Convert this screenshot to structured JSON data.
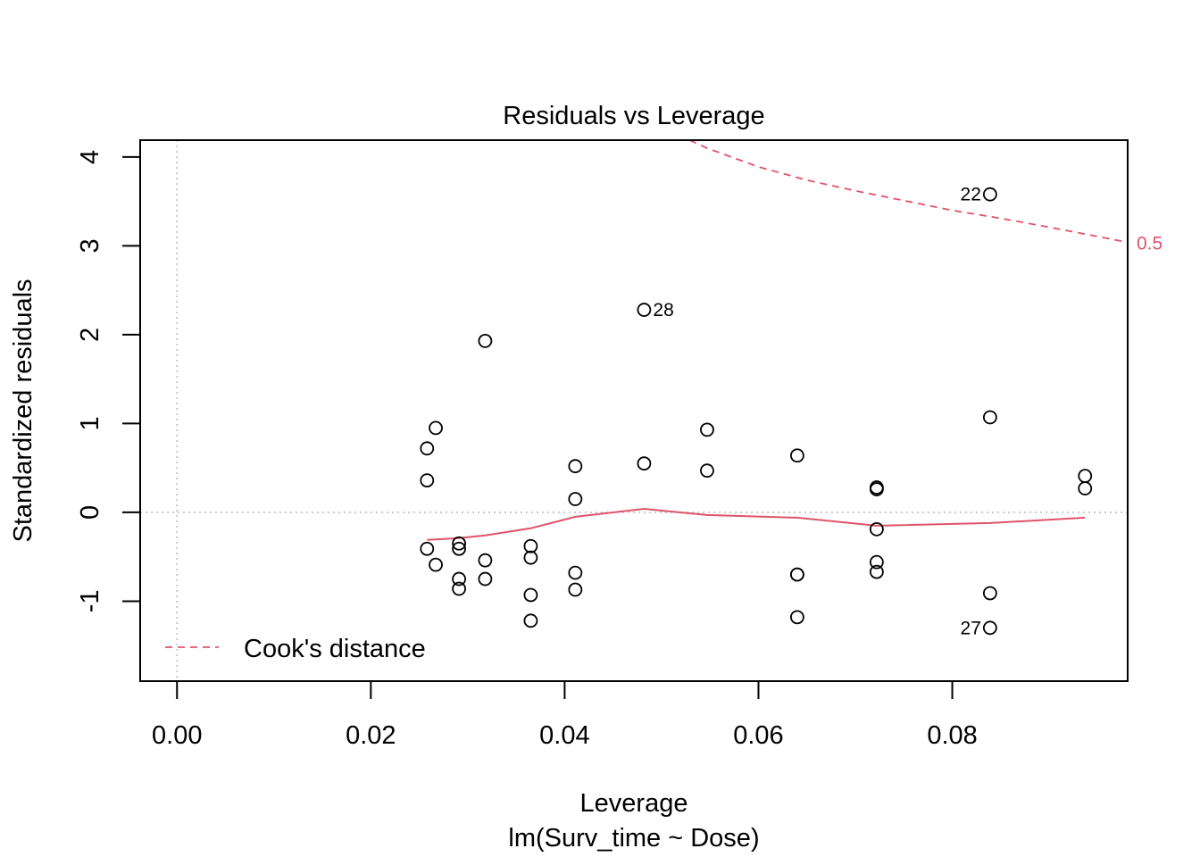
{
  "chart_data": {
    "type": "scatter",
    "title": "Residuals vs Leverage",
    "xlabel": "Leverage",
    "subtitle": "lm(Surv_time ~ Dose)",
    "ylabel": "Standardized residuals",
    "xlim": [
      -0.0038,
      0.0981
    ],
    "ylim": [
      -1.9,
      4.19
    ],
    "x_ticks": [
      0.0,
      0.02,
      0.04,
      0.06,
      0.08
    ],
    "x_tick_labels": [
      "0.00",
      "0.02",
      "0.04",
      "0.06",
      "0.08"
    ],
    "y_ticks": [
      -1,
      0,
      1,
      2,
      3,
      4
    ],
    "y_tick_labels": [
      "-1",
      "0",
      "1",
      "2",
      "3",
      "4"
    ],
    "reference_lines": {
      "x": 0,
      "y": 0,
      "style": "dotted",
      "color": "#bebebe"
    },
    "points": [
      {
        "x": 0.0258,
        "y": 0.72
      },
      {
        "x": 0.0258,
        "y": 0.36
      },
      {
        "x": 0.0258,
        "y": -0.41
      },
      {
        "x": 0.0267,
        "y": 0.95
      },
      {
        "x": 0.0267,
        "y": -0.59
      },
      {
        "x": 0.0291,
        "y": -0.35
      },
      {
        "x": 0.0291,
        "y": -0.41
      },
      {
        "x": 0.0291,
        "y": -0.75
      },
      {
        "x": 0.0291,
        "y": -0.86
      },
      {
        "x": 0.0318,
        "y": 1.93
      },
      {
        "x": 0.0318,
        "y": -0.54
      },
      {
        "x": 0.0318,
        "y": -0.75
      },
      {
        "x": 0.0365,
        "y": -0.38
      },
      {
        "x": 0.0365,
        "y": -0.51
      },
      {
        "x": 0.0365,
        "y": -0.93
      },
      {
        "x": 0.0365,
        "y": -1.22
      },
      {
        "x": 0.0411,
        "y": 0.52
      },
      {
        "x": 0.0411,
        "y": 0.15
      },
      {
        "x": 0.0411,
        "y": -0.68
      },
      {
        "x": 0.0411,
        "y": -0.87
      },
      {
        "x": 0.0482,
        "y": 2.28,
        "label": "28"
      },
      {
        "x": 0.0482,
        "y": 0.55
      },
      {
        "x": 0.0547,
        "y": 0.93
      },
      {
        "x": 0.0547,
        "y": 0.47
      },
      {
        "x": 0.064,
        "y": 0.64
      },
      {
        "x": 0.064,
        "y": -0.7
      },
      {
        "x": 0.064,
        "y": -0.7
      },
      {
        "x": 0.064,
        "y": -1.18
      },
      {
        "x": 0.0722,
        "y": 0.28
      },
      {
        "x": 0.0722,
        "y": 0.26
      },
      {
        "x": 0.0722,
        "y": -0.19
      },
      {
        "x": 0.0722,
        "y": -0.56
      },
      {
        "x": 0.0722,
        "y": -0.67
      },
      {
        "x": 0.0839,
        "y": 3.58,
        "label": "22"
      },
      {
        "x": 0.0839,
        "y": 1.07
      },
      {
        "x": 0.0839,
        "y": -0.91
      },
      {
        "x": 0.0839,
        "y": -1.3,
        "label": "27"
      },
      {
        "x": 0.0937,
        "y": 0.41
      },
      {
        "x": 0.0937,
        "y": 0.27
      }
    ],
    "smoother": {
      "color": "#df536b",
      "x": [
        0.0258,
        0.0291,
        0.0318,
        0.0365,
        0.0411,
        0.0482,
        0.0547,
        0.064,
        0.0722,
        0.0839,
        0.0937
      ],
      "y": [
        -0.31,
        -0.29,
        -0.26,
        -0.18,
        -0.05,
        0.04,
        -0.03,
        -0.06,
        -0.15,
        -0.12,
        -0.06
      ]
    },
    "cooks_contour": {
      "level_label": "0.5",
      "color": "#df536b",
      "x": [
        0.0529,
        0.0547,
        0.06,
        0.065,
        0.07,
        0.075,
        0.08,
        0.085,
        0.09,
        0.0981
      ],
      "y": [
        4.19,
        4.1,
        3.89,
        3.74,
        3.62,
        3.51,
        3.4,
        3.31,
        3.21,
        3.04
      ]
    },
    "legend": {
      "position": "bottom-left",
      "label": "Cook's distance"
    }
  }
}
